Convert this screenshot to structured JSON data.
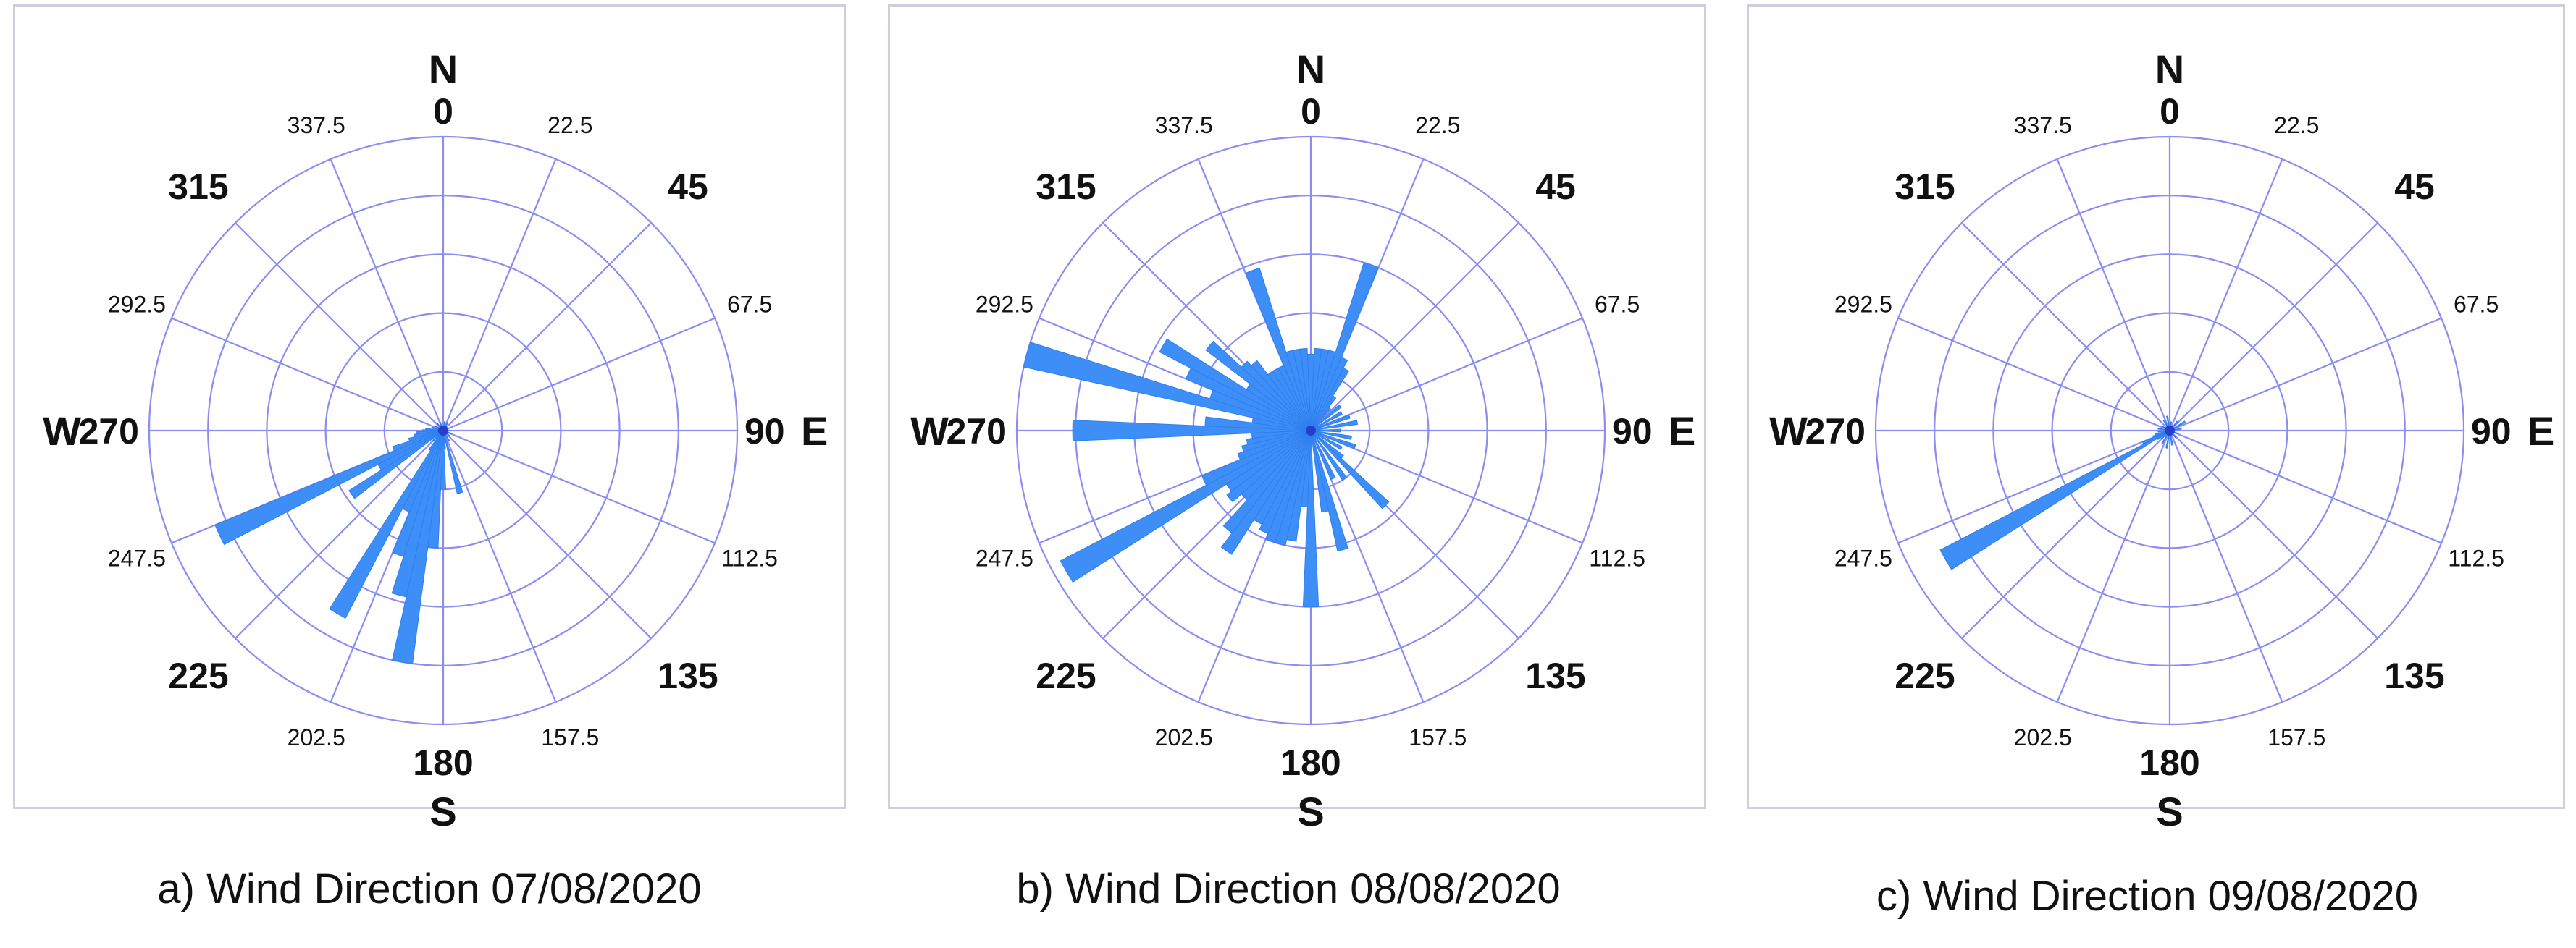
{
  "chart_data": [
    {
      "type": "polar_bar",
      "caption": "a) Wind Direction 07/08/2020",
      "direction_labels": [
        "0",
        "22.5",
        "45",
        "67.5",
        "90",
        "112.5",
        "135",
        "157.5",
        "180",
        "202.5",
        "225",
        "247.5",
        "270",
        "292.5",
        "315",
        "337.5"
      ],
      "compass_labels": {
        "N": "N",
        "E": "E",
        "S": "S",
        "W": "W"
      },
      "ring_count": 5,
      "bin_width_deg": 5,
      "bars": [
        {
          "direction": 245,
          "value": 0.84
        },
        {
          "direction": 235,
          "value": 0.38
        },
        {
          "direction": 240,
          "value": 0.25
        },
        {
          "direction": 250,
          "value": 0.18
        },
        {
          "direction": 255,
          "value": 0.12
        },
        {
          "direction": 260,
          "value": 0.1
        },
        {
          "direction": 265,
          "value": 0.09
        },
        {
          "direction": 270,
          "value": 0.07
        },
        {
          "direction": 275,
          "value": 0.06
        },
        {
          "direction": 285,
          "value": 0.04
        },
        {
          "direction": 300,
          "value": 0.03
        },
        {
          "direction": 320,
          "value": 0.03
        },
        {
          "direction": 340,
          "value": 0.03
        },
        {
          "direction": 225,
          "value": 0.05
        },
        {
          "direction": 215,
          "value": 0.08
        },
        {
          "direction": 210,
          "value": 0.72
        },
        {
          "direction": 205,
          "value": 0.3
        },
        {
          "direction": 200,
          "value": 0.45
        },
        {
          "direction": 195,
          "value": 0.58
        },
        {
          "direction": 190,
          "value": 0.8
        },
        {
          "direction": 185,
          "value": 0.4
        },
        {
          "direction": 180,
          "value": 0.2
        },
        {
          "direction": 175,
          "value": 0.06
        },
        {
          "direction": 165,
          "value": 0.22
        },
        {
          "direction": 150,
          "value": 0.04
        },
        {
          "direction": 130,
          "value": 0.03
        },
        {
          "direction": 110,
          "value": 0.03
        },
        {
          "direction": 90,
          "value": 0.02
        },
        {
          "direction": 30,
          "value": 0.03
        },
        {
          "direction": 10,
          "value": 0.03
        }
      ]
    },
    {
      "type": "polar_bar",
      "caption": "b) Wind Direction 08/08/2020",
      "direction_labels": [
        "0",
        "22.5",
        "45",
        "67.5",
        "90",
        "112.5",
        "135",
        "157.5",
        "180",
        "202.5",
        "225",
        "247.5",
        "270",
        "292.5",
        "315",
        "337.5"
      ],
      "compass_labels": {
        "N": "N",
        "E": "E",
        "S": "S",
        "W": "W"
      },
      "ring_count": 5,
      "bin_width_deg": 5,
      "bars": [
        {
          "direction": 285,
          "value": 1.0
        },
        {
          "direction": 270,
          "value": 0.81
        },
        {
          "direction": 240,
          "value": 0.96
        },
        {
          "direction": 300,
          "value": 0.58
        },
        {
          "direction": 290,
          "value": 0.36
        },
        {
          "direction": 295,
          "value": 0.46
        },
        {
          "direction": 305,
          "value": 0.26
        },
        {
          "direction": 310,
          "value": 0.45
        },
        {
          "direction": 315,
          "value": 0.32
        },
        {
          "direction": 320,
          "value": 0.3
        },
        {
          "direction": 325,
          "value": 0.24
        },
        {
          "direction": 330,
          "value": 0.24
        },
        {
          "direction": 335,
          "value": 0.24
        },
        {
          "direction": 340,
          "value": 0.58
        },
        {
          "direction": 345,
          "value": 0.28
        },
        {
          "direction": 350,
          "value": 0.28
        },
        {
          "direction": 355,
          "value": 0.28
        },
        {
          "direction": 0,
          "value": 0.26
        },
        {
          "direction": 5,
          "value": 0.28
        },
        {
          "direction": 10,
          "value": 0.28
        },
        {
          "direction": 15,
          "value": 0.28
        },
        {
          "direction": 20,
          "value": 0.6
        },
        {
          "direction": 25,
          "value": 0.27
        },
        {
          "direction": 30,
          "value": 0.24
        },
        {
          "direction": 35,
          "value": 0.14
        },
        {
          "direction": 40,
          "value": 0.1
        },
        {
          "direction": 50,
          "value": 0.13
        },
        {
          "direction": 60,
          "value": 0.12
        },
        {
          "direction": 70,
          "value": 0.14
        },
        {
          "direction": 80,
          "value": 0.16
        },
        {
          "direction": 90,
          "value": 0.1
        },
        {
          "direction": 100,
          "value": 0.14
        },
        {
          "direction": 110,
          "value": 0.16
        },
        {
          "direction": 120,
          "value": 0.12
        },
        {
          "direction": 130,
          "value": 0.14
        },
        {
          "direction": 135,
          "value": 0.36
        },
        {
          "direction": 145,
          "value": 0.2
        },
        {
          "direction": 155,
          "value": 0.18
        },
        {
          "direction": 165,
          "value": 0.42
        },
        {
          "direction": 170,
          "value": 0.28
        },
        {
          "direction": 180,
          "value": 0.6
        },
        {
          "direction": 185,
          "value": 0.26
        },
        {
          "direction": 190,
          "value": 0.38
        },
        {
          "direction": 195,
          "value": 0.4
        },
        {
          "direction": 200,
          "value": 0.4
        },
        {
          "direction": 205,
          "value": 0.38
        },
        {
          "direction": 210,
          "value": 0.36
        },
        {
          "direction": 215,
          "value": 0.5
        },
        {
          "direction": 220,
          "value": 0.44
        },
        {
          "direction": 225,
          "value": 0.32
        },
        {
          "direction": 230,
          "value": 0.36
        },
        {
          "direction": 235,
          "value": 0.34
        },
        {
          "direction": 245,
          "value": 0.4
        },
        {
          "direction": 250,
          "value": 0.26
        },
        {
          "direction": 255,
          "value": 0.24
        },
        {
          "direction": 260,
          "value": 0.22
        },
        {
          "direction": 265,
          "value": 0.2
        },
        {
          "direction": 275,
          "value": 0.36
        },
        {
          "direction": 280,
          "value": 0.2
        }
      ]
    },
    {
      "type": "polar_bar",
      "caption": "c) Wind Direction 09/08/2020",
      "direction_labels": [
        "0",
        "22.5",
        "45",
        "67.5",
        "90",
        "112.5",
        "135",
        "157.5",
        "180",
        "202.5",
        "225",
        "247.5",
        "270",
        "292.5",
        "315",
        "337.5"
      ],
      "compass_labels": {
        "N": "N",
        "E": "E",
        "S": "S",
        "W": "W"
      },
      "ring_count": 5,
      "bin_width_deg": 5,
      "bars": [
        {
          "direction": 240,
          "value": 0.88
        },
        {
          "direction": 235,
          "value": 0.05
        },
        {
          "direction": 245,
          "value": 0.1
        },
        {
          "direction": 250,
          "value": 0.06
        },
        {
          "direction": 255,
          "value": 0.05
        },
        {
          "direction": 265,
          "value": 0.04
        },
        {
          "direction": 280,
          "value": 0.04
        },
        {
          "direction": 300,
          "value": 0.03
        },
        {
          "direction": 330,
          "value": 0.04
        },
        {
          "direction": 350,
          "value": 0.05
        },
        {
          "direction": 10,
          "value": 0.03
        },
        {
          "direction": 40,
          "value": 0.04
        },
        {
          "direction": 60,
          "value": 0.06
        },
        {
          "direction": 80,
          "value": 0.04
        },
        {
          "direction": 110,
          "value": 0.03
        },
        {
          "direction": 140,
          "value": 0.03
        },
        {
          "direction": 170,
          "value": 0.05
        },
        {
          "direction": 190,
          "value": 0.06
        },
        {
          "direction": 210,
          "value": 0.05
        },
        {
          "direction": 225,
          "value": 0.04
        }
      ]
    }
  ]
}
